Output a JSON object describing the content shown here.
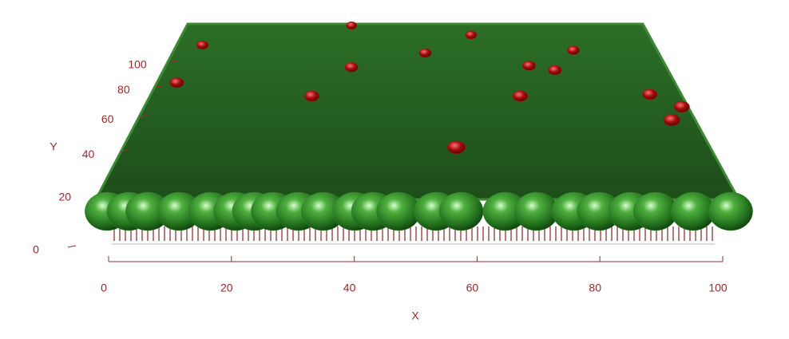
{
  "chart_data": {
    "type": "scatter3d",
    "xlabel": "X",
    "ylabel": "Y",
    "xlim": [
      0,
      100
    ],
    "ylim": [
      0,
      100
    ],
    "xticks": [
      0,
      20,
      40,
      60,
      80,
      100
    ],
    "yticks": [
      0,
      20,
      40,
      60,
      80,
      100
    ],
    "series": [
      {
        "color": "#2f8a2a",
        "x": [
          0.5,
          4,
          7,
          12,
          17,
          21,
          24,
          27,
          31,
          35,
          40,
          43,
          47,
          53,
          57,
          64,
          69,
          75,
          79,
          84,
          88,
          94,
          100
        ],
        "values": [
          0,
          0,
          0,
          0,
          0,
          0,
          0,
          0,
          0,
          0,
          0,
          0,
          0,
          0,
          0,
          0,
          0,
          0,
          0,
          0,
          0,
          0,
          0
        ]
      },
      {
        "color": "#b01010",
        "x": [
          36,
          62,
          5,
          52,
          83,
          37,
          73,
          78,
          3,
          30,
          70,
          95,
          100,
          97,
          57
        ],
        "values": [
          100,
          92,
          84,
          78,
          80,
          68,
          69,
          66,
          58,
          50,
          50,
          51,
          44,
          37,
          24
        ]
      }
    ]
  }
}
